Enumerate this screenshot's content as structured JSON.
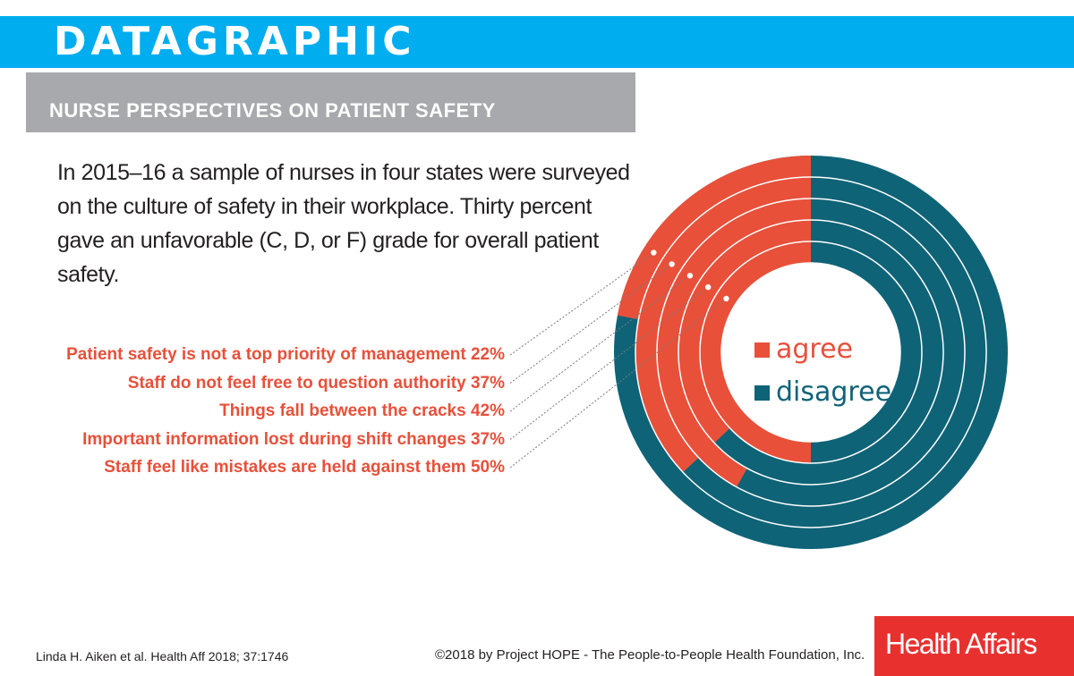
{
  "header": {
    "banner": "DATAGRAPHIC",
    "title": "NURSE PERSPECTIVES ON PATIENT SAFETY"
  },
  "intro": "In 2015–16 a sample of nurses in four states were surveyed on the culture of safety in their workplace. Thirty percent gave an unfavorable (C, D, or F) grade for overall patient safety.",
  "colors": {
    "agree": "#e8503a",
    "disagree": "#0f6377",
    "banner": "#00adef",
    "subtitle_bar": "#a7a9ac",
    "logo": "#e8312f"
  },
  "chart_data": {
    "type": "pie",
    "variant": "radial-bar (concentric rings)",
    "categories": [
      "Patient safety is not a top priority of management",
      "Staff do not feel free to question authority",
      "Things fall between the cracks",
      "Important information lost during shift changes",
      "Staff feel like mistakes are held against them"
    ],
    "series": [
      {
        "name": "agree",
        "values": [
          22,
          37,
          42,
          37,
          50
        ]
      },
      {
        "name": "disagree",
        "values": [
          78,
          63,
          58,
          63,
          50
        ]
      }
    ],
    "value_labels": [
      "22%",
      "37%",
      "42%",
      "37%",
      "50%"
    ],
    "unit": "%",
    "legend": {
      "position": "center",
      "entries": [
        "agree",
        "disagree"
      ]
    }
  },
  "footer": {
    "citation": "Linda H. Aiken et al. Health Aff 2018; 37:1746",
    "copyright": "©2018 by Project HOPE - The People-to-People Health Foundation, Inc.",
    "logo": "Health Affairs"
  }
}
